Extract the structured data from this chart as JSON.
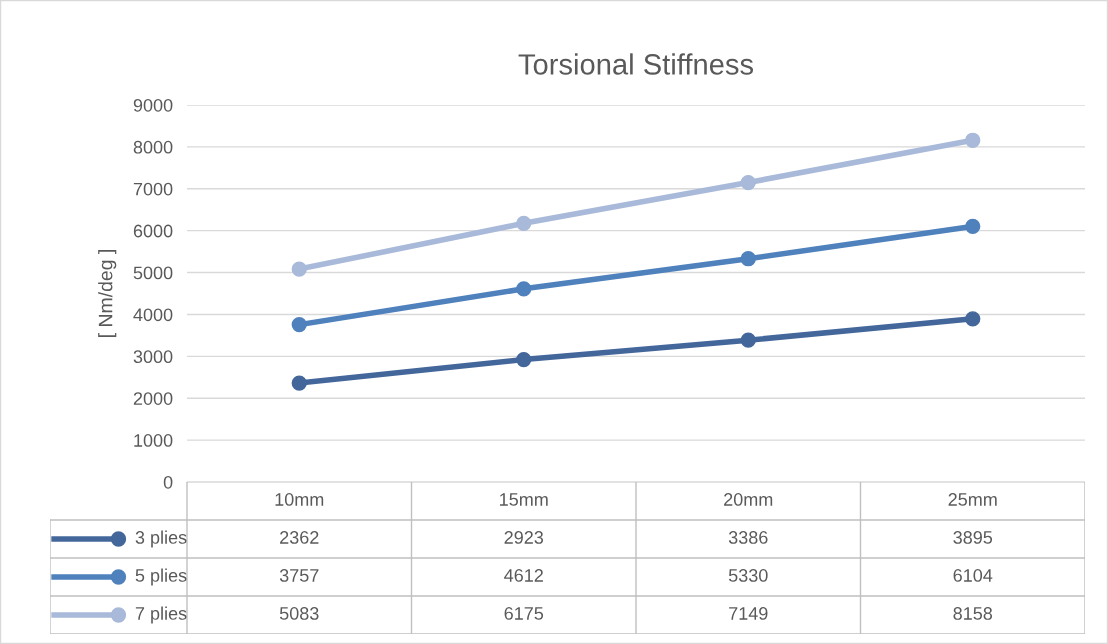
{
  "chart_data": {
    "type": "line",
    "title": "Torsional Stiffness",
    "ylabel": "[ Nm/deg ]",
    "categories": [
      "10mm",
      "15mm",
      "20mm",
      "25mm"
    ],
    "series": [
      {
        "name": "3 plies",
        "color": "#44679b",
        "values": [
          2362,
          2923,
          3386,
          3895
        ]
      },
      {
        "name": "5 plies",
        "color": "#4f81bd",
        "values": [
          3757,
          4612,
          5330,
          6104
        ]
      },
      {
        "name": "7 plies",
        "color": "#a8b9d9",
        "values": [
          5083,
          6175,
          7149,
          8158
        ]
      }
    ],
    "ylim": [
      0,
      9000
    ],
    "yticks": [
      0,
      1000,
      2000,
      3000,
      4000,
      5000,
      6000,
      7000,
      8000,
      9000
    ],
    "grid": "y",
    "marker": "circle",
    "line_style": "solid",
    "data_labels": true,
    "legend": "bottom"
  }
}
